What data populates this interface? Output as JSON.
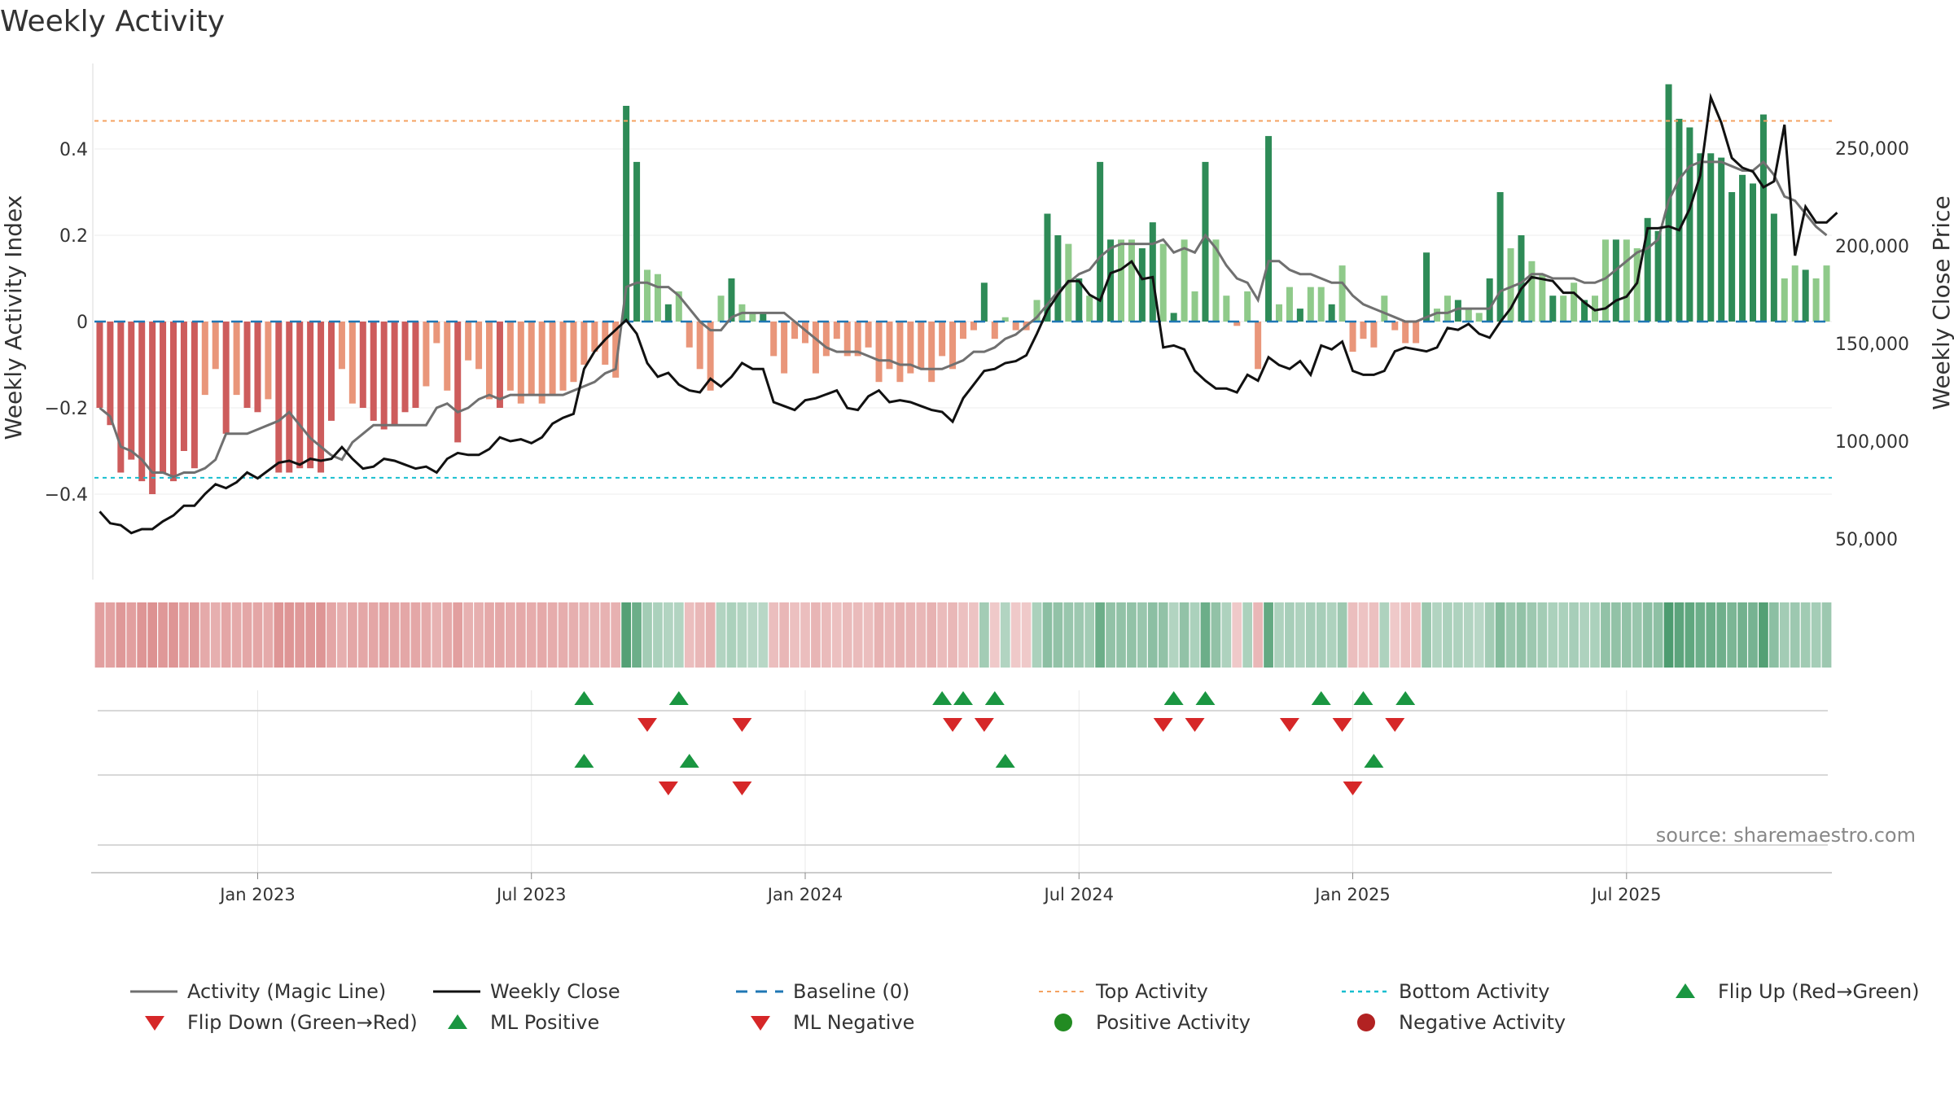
{
  "chart_data": {
    "type": "bar",
    "title": "Weekly Activity",
    "ylabel_left": "Weekly Activity Index",
    "ylabel_right": "Weekly Close Price",
    "source": "source: sharemaestro.com",
    "ylim_left": [
      -0.59,
      0.59
    ],
    "ylim_right": [
      20000,
      288000
    ],
    "yticks_left": [
      -0.4,
      -0.2,
      0,
      0.2,
      0.4
    ],
    "yticks_left_labels": [
      "−0.4",
      "−0.2",
      "0",
      "0.2",
      "0.4"
    ],
    "yticks_right": [
      50000,
      100000,
      150000,
      200000,
      250000
    ],
    "yticks_right_labels": [
      "50,000",
      "100,000",
      "150,000",
      "200,000",
      "250,000"
    ],
    "xticks": [
      {
        "week": 15,
        "label": "Jan 2023"
      },
      {
        "week": 41,
        "label": "Jul 2023"
      },
      {
        "week": 67,
        "label": "Jan 2024"
      },
      {
        "week": 93,
        "label": "Jul 2024"
      },
      {
        "week": 119,
        "label": "Jan 2025"
      },
      {
        "week": 145,
        "label": "Jul 2025"
      }
    ],
    "top_activity": 0.465,
    "bottom_activity": -0.362,
    "colors": {
      "pos_strong": "#2e8b57",
      "pos_weak": "#8fca8a",
      "neg_strong": "#cd5c5c",
      "neg_weak": "#e9967a",
      "magic_line": "#707070",
      "close": "#111111",
      "baseline": "#1f77b4",
      "top": "#f4a261",
      "bottom": "#17becf",
      "flip_up": "#1a9641",
      "flip_down": "#d62728",
      "positive_dot": "#228b22",
      "negative_dot": "#b22222"
    },
    "activity": [
      -0.2,
      -0.24,
      -0.35,
      -0.32,
      -0.37,
      -0.4,
      -0.35,
      -0.37,
      -0.3,
      -0.34,
      -0.17,
      -0.11,
      -0.26,
      -0.17,
      -0.2,
      -0.21,
      -0.18,
      -0.35,
      -0.35,
      -0.34,
      -0.34,
      -0.35,
      -0.23,
      -0.11,
      -0.19,
      -0.2,
      -0.23,
      -0.25,
      -0.24,
      -0.21,
      -0.2,
      -0.15,
      -0.05,
      -0.16,
      -0.28,
      -0.09,
      -0.11,
      -0.18,
      -0.2,
      -0.16,
      -0.19,
      -0.17,
      -0.19,
      -0.17,
      -0.16,
      -0.14,
      -0.1,
      -0.07,
      -0.1,
      -0.13,
      0.5,
      0.37,
      0.12,
      0.11,
      0.04,
      0.07,
      -0.06,
      -0.11,
      -0.16,
      0.06,
      0.1,
      0.04,
      0.02,
      0.02,
      -0.08,
      -0.12,
      -0.04,
      -0.05,
      -0.12,
      -0.08,
      -0.04,
      -0.08,
      -0.08,
      -0.06,
      -0.14,
      -0.11,
      -0.14,
      -0.12,
      -0.11,
      -0.14,
      -0.08,
      -0.11,
      -0.04,
      -0.02,
      0.09,
      -0.04,
      0.01,
      -0.02,
      -0.02,
      0.05,
      0.25,
      0.2,
      0.18,
      0.1,
      0.06,
      0.37,
      0.19,
      0.19,
      0.19,
      0.17,
      0.23,
      0.18,
      0.02,
      0.19,
      0.07,
      0.37,
      0.19,
      0.06,
      -0.01,
      0.07,
      -0.11,
      0.43,
      0.04,
      0.08,
      0.03,
      0.08,
      0.08,
      0.04,
      0.13,
      -0.07,
      -0.04,
      -0.06,
      0.06,
      -0.02,
      -0.05,
      -0.05,
      0.16,
      0.03,
      0.06,
      0.05,
      0.03,
      0.02,
      0.1,
      0.3,
      0.17,
      0.2,
      0.14,
      0.11,
      0.06,
      0.06,
      0.09,
      0.05,
      0.06,
      0.19,
      0.19,
      0.19,
      0.17,
      0.24,
      0.21,
      0.55,
      0.47,
      0.45,
      0.39,
      0.39,
      0.38,
      0.3,
      0.34,
      0.32,
      0.48,
      0.25,
      0.1,
      0.13,
      0.12,
      0.1,
      0.13
    ],
    "magic_line": [
      -0.2,
      -0.22,
      -0.29,
      -0.3,
      -0.32,
      -0.35,
      -0.35,
      -0.36,
      -0.35,
      -0.35,
      -0.34,
      -0.32,
      -0.26,
      -0.26,
      -0.26,
      -0.25,
      -0.24,
      -0.23,
      -0.21,
      -0.24,
      -0.27,
      -0.29,
      -0.31,
      -0.32,
      -0.28,
      -0.26,
      -0.24,
      -0.24,
      -0.24,
      -0.24,
      -0.24,
      -0.24,
      -0.2,
      -0.19,
      -0.21,
      -0.2,
      -0.18,
      -0.17,
      -0.18,
      -0.17,
      -0.17,
      -0.17,
      -0.17,
      -0.17,
      -0.17,
      -0.16,
      -0.15,
      -0.14,
      -0.12,
      -0.11,
      0.08,
      0.09,
      0.09,
      0.08,
      0.08,
      0.06,
      0.03,
      0.0,
      -0.02,
      -0.02,
      0.01,
      0.02,
      0.02,
      0.02,
      0.02,
      0.02,
      0.0,
      -0.02,
      -0.04,
      -0.06,
      -0.07,
      -0.07,
      -0.07,
      -0.08,
      -0.09,
      -0.09,
      -0.1,
      -0.1,
      -0.11,
      -0.11,
      -0.11,
      -0.1,
      -0.09,
      -0.07,
      -0.07,
      -0.06,
      -0.04,
      -0.03,
      -0.01,
      0.01,
      0.04,
      0.07,
      0.09,
      0.11,
      0.12,
      0.15,
      0.17,
      0.18,
      0.18,
      0.18,
      0.18,
      0.19,
      0.16,
      0.17,
      0.16,
      0.2,
      0.17,
      0.13,
      0.1,
      0.09,
      0.05,
      0.14,
      0.14,
      0.12,
      0.11,
      0.11,
      0.1,
      0.09,
      0.09,
      0.06,
      0.04,
      0.03,
      0.02,
      0.01,
      0.0,
      0.0,
      0.01,
      0.02,
      0.02,
      0.03,
      0.03,
      0.03,
      0.03,
      0.07,
      0.08,
      0.09,
      0.11,
      0.11,
      0.1,
      0.1,
      0.1,
      0.09,
      0.09,
      0.1,
      0.12,
      0.14,
      0.16,
      0.17,
      0.19,
      0.28,
      0.33,
      0.36,
      0.37,
      0.37,
      0.37,
      0.36,
      0.35,
      0.35,
      0.37,
      0.34,
      0.29,
      0.28,
      0.25,
      0.22,
      0.2
    ],
    "weekly_close": [
      64000,
      58000,
      57000,
      53000,
      55000,
      55000,
      59000,
      62000,
      67000,
      67000,
      73000,
      78000,
      76000,
      79000,
      84000,
      81000,
      85000,
      89000,
      90000,
      88000,
      91000,
      90000,
      91000,
      97000,
      91000,
      86000,
      87000,
      91000,
      90000,
      88000,
      86000,
      87000,
      84000,
      91000,
      94000,
      93000,
      93000,
      96000,
      102000,
      100000,
      101000,
      99000,
      102000,
      109000,
      112000,
      114000,
      137000,
      146000,
      152000,
      157000,
      162000,
      155000,
      140000,
      133000,
      135000,
      129000,
      126000,
      125000,
      132000,
      128000,
      133000,
      140000,
      137000,
      137000,
      120000,
      118000,
      116000,
      121000,
      122000,
      124000,
      126000,
      117000,
      116000,
      123000,
      126000,
      120000,
      121000,
      120000,
      118000,
      116000,
      115000,
      110000,
      122000,
      129000,
      136000,
      137000,
      140000,
      141000,
      144000,
      155000,
      167000,
      175000,
      182000,
      182000,
      175000,
      172000,
      186000,
      188000,
      192000,
      183000,
      184000,
      148000,
      149000,
      147000,
      136000,
      131000,
      127000,
      127000,
      125000,
      134000,
      131000,
      143000,
      139000,
      137000,
      141000,
      134000,
      149000,
      147000,
      151000,
      136000,
      134000,
      134000,
      136000,
      146000,
      148000,
      147000,
      146000,
      148000,
      158000,
      157000,
      160000,
      155000,
      153000,
      161000,
      168000,
      178000,
      184000,
      183000,
      182000,
      176000,
      176000,
      171000,
      167000,
      168000,
      172000,
      174000,
      181000,
      209000,
      209000,
      210000,
      208000,
      219000,
      236000,
      276000,
      263000,
      245000,
      240000,
      238000,
      230000,
      233000,
      262000,
      195000,
      220000,
      212000,
      212000,
      217000
    ],
    "strip_intensity": [
      -0.55,
      -0.52,
      -0.6,
      -0.55,
      -0.62,
      -0.65,
      -0.6,
      -0.62,
      -0.55,
      -0.58,
      -0.45,
      -0.42,
      -0.5,
      -0.45,
      -0.48,
      -0.5,
      -0.45,
      -0.62,
      -0.62,
      -0.6,
      -0.6,
      -0.62,
      -0.5,
      -0.42,
      -0.48,
      -0.48,
      -0.5,
      -0.52,
      -0.5,
      -0.48,
      -0.48,
      -0.45,
      -0.38,
      -0.45,
      -0.55,
      -0.4,
      -0.42,
      -0.46,
      -0.48,
      -0.44,
      -0.46,
      -0.44,
      -0.46,
      -0.44,
      -0.43,
      -0.42,
      -0.38,
      -0.36,
      -0.38,
      -0.4,
      0.85,
      0.7,
      0.35,
      0.3,
      0.25,
      0.25,
      -0.3,
      -0.35,
      -0.4,
      0.25,
      0.3,
      0.25,
      0.22,
      0.22,
      -0.3,
      -0.35,
      -0.28,
      -0.3,
      -0.36,
      -0.32,
      -0.28,
      -0.32,
      -0.32,
      -0.3,
      -0.38,
      -0.35,
      -0.38,
      -0.36,
      -0.35,
      -0.38,
      -0.32,
      -0.35,
      -0.28,
      -0.25,
      0.35,
      -0.2,
      0.25,
      -0.2,
      -0.2,
      0.3,
      0.5,
      0.45,
      0.42,
      0.38,
      0.35,
      0.7,
      0.45,
      0.45,
      0.45,
      0.42,
      0.5,
      0.45,
      0.25,
      0.45,
      0.3,
      0.7,
      0.45,
      0.28,
      -0.2,
      0.3,
      -0.35,
      0.75,
      0.28,
      0.32,
      0.28,
      0.32,
      0.32,
      0.28,
      0.38,
      -0.3,
      -0.25,
      -0.28,
      0.28,
      -0.2,
      -0.28,
      -0.28,
      0.4,
      0.25,
      0.3,
      0.28,
      0.25,
      0.22,
      0.35,
      0.55,
      0.42,
      0.45,
      0.38,
      0.35,
      0.3,
      0.3,
      0.32,
      0.28,
      0.3,
      0.45,
      0.45,
      0.45,
      0.42,
      0.5,
      0.48,
      0.9,
      0.8,
      0.78,
      0.7,
      0.7,
      0.68,
      0.6,
      0.65,
      0.62,
      0.85,
      0.5,
      0.35,
      0.38,
      0.36,
      0.34,
      0.38
    ],
    "flip_up_weeks": [
      46,
      55,
      80,
      82,
      85,
      102,
      105,
      116,
      120,
      124
    ],
    "flip_down_weeks": [
      52,
      61,
      81,
      84,
      101,
      104,
      113,
      118,
      123
    ],
    "ml_positive_weeks": [
      46,
      56,
      86,
      121
    ],
    "ml_negative_weeks": [
      54,
      61,
      119
    ],
    "legend": [
      {
        "key": "magic_line",
        "label": "Activity (Magic Line)"
      },
      {
        "key": "close",
        "label": "Weekly Close"
      },
      {
        "key": "baseline",
        "label": "Baseline (0)"
      },
      {
        "key": "top",
        "label": "Top Activity"
      },
      {
        "key": "bottom",
        "label": "Bottom Activity"
      },
      {
        "key": "flip_up",
        "label": "Flip Up (Red→Green)"
      },
      {
        "key": "flip_down",
        "label": "Flip Down (Green→Red)"
      },
      {
        "key": "ml_pos",
        "label": "ML Positive"
      },
      {
        "key": "ml_neg",
        "label": "ML Negative"
      },
      {
        "key": "pos_act",
        "label": "Positive Activity"
      },
      {
        "key": "neg_act",
        "label": "Negative Activity"
      }
    ]
  }
}
